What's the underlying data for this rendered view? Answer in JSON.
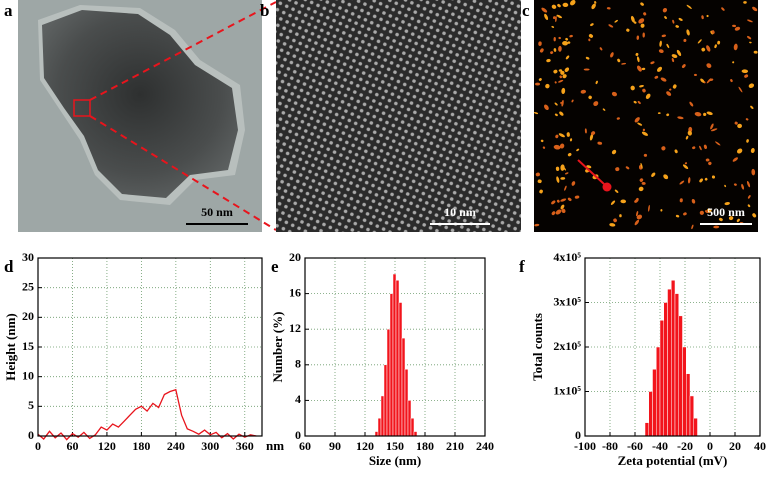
{
  "panels": [
    {
      "label": "a",
      "scale_bar": "50 nm"
    },
    {
      "label": "b",
      "scale_bar": "10 nm"
    },
    {
      "label": "c",
      "scale_bar": "500 nm"
    }
  ],
  "chart_data": [
    {
      "type": "line",
      "panel_label": "d",
      "xlabel": "nm",
      "ylabel": "Height (nm)",
      "color": "#e8141c",
      "grid": true,
      "x": [
        0,
        10,
        20,
        30,
        40,
        50,
        60,
        70,
        80,
        90,
        100,
        110,
        120,
        130,
        140,
        150,
        160,
        170,
        180,
        190,
        200,
        210,
        220,
        230,
        240,
        250,
        260,
        270,
        280,
        290,
        300,
        310,
        320,
        330,
        340,
        350,
        360,
        370,
        380
      ],
      "values": [
        0.3,
        -0.5,
        0.8,
        -0.3,
        0.5,
        -0.6,
        0.4,
        -0.2,
        0.6,
        -0.4,
        0.2,
        1.5,
        1.0,
        2.0,
        1.5,
        2.5,
        3.5,
        4.5,
        5.0,
        4.2,
        5.5,
        4.8,
        7.0,
        7.5,
        7.8,
        3.5,
        1.2,
        0.8,
        0.3,
        1.0,
        0.2,
        0.6,
        -0.3,
        0.4,
        -0.5,
        0.3,
        -0.2,
        0.2,
        0
      ],
      "xlim": [
        0,
        390
      ],
      "xticks": [
        0,
        60,
        120,
        180,
        240,
        300,
        360
      ],
      "ylim": [
        0,
        30
      ],
      "yticks": [
        0,
        5,
        10,
        15,
        20,
        25,
        30
      ]
    },
    {
      "type": "histogram",
      "panel_label": "e",
      "xlabel": "Size (nm)",
      "ylabel": "Number (%)",
      "color": "#f2141c",
      "grid": true,
      "bins": [
        130,
        133,
        136,
        139,
        142,
        145,
        148,
        151,
        154,
        157,
        160,
        163,
        166,
        169,
        172
      ],
      "values": [
        0.5,
        2,
        4.5,
        8,
        12,
        16,
        18.2,
        17.5,
        15,
        11,
        7.5,
        4,
        2,
        0.5
      ],
      "xlim": [
        60,
        240
      ],
      "xticks": [
        60,
        90,
        120,
        150,
        180,
        210,
        240
      ],
      "ylim": [
        0,
        20
      ],
      "yticks": [
        0,
        4,
        8,
        12,
        16,
        20
      ]
    },
    {
      "type": "histogram",
      "panel_label": "f",
      "xlabel": "Zeta potential (mV)",
      "ylabel": "Total counts",
      "color": "#f2141c",
      "grid": true,
      "bins": [
        -52,
        -49,
        -46,
        -43,
        -40,
        -37,
        -34,
        -31,
        -28,
        -25,
        -22,
        -19,
        -16,
        -13,
        -10
      ],
      "values": [
        30000,
        100000,
        150000,
        200000,
        260000,
        300000,
        330000,
        350000,
        320000,
        270000,
        200000,
        140000,
        90000,
        40000
      ],
      "xlim": [
        -100,
        40
      ],
      "xticks": [
        -100,
        -80,
        -60,
        -40,
        -20,
        0,
        20,
        40
      ],
      "ylim": [
        0,
        400000
      ],
      "yticks": [
        0,
        {
          "value": 100000,
          "label": "1x10⁵"
        },
        {
          "value": 200000,
          "label": "2x10⁵"
        },
        {
          "value": 300000,
          "label": "3x10⁵"
        },
        {
          "value": 400000,
          "label": "4x10⁵"
        }
      ]
    }
  ]
}
